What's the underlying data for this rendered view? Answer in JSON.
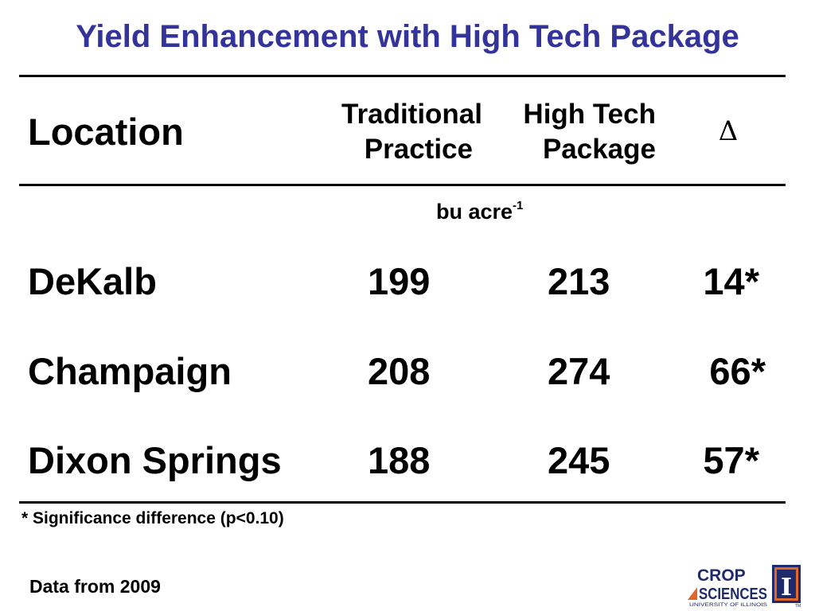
{
  "title": "Yield Enhancement with High Tech Package",
  "table": {
    "headers": {
      "location": "Location",
      "traditional_line1": "Traditional",
      "traditional_line2": "Practice",
      "hightech_line1": "High Tech",
      "hightech_line2": "Package",
      "delta": "Δ"
    },
    "unit": {
      "text": "bu acre",
      "superscript": "-1"
    },
    "rows": [
      {
        "location": "DeKalb",
        "traditional": "199",
        "hightech": "213",
        "delta": "14*"
      },
      {
        "location": "Champaign",
        "traditional": "208",
        "hightech": "274",
        "delta": "66*"
      },
      {
        "location": "Dixon Springs",
        "traditional": "188",
        "hightech": "245",
        "delta": "57*"
      }
    ]
  },
  "footnote": "* Significance difference (p<0.10)",
  "source": "Data from 2009",
  "logo": {
    "line1": "CROP",
    "line2": "SCIENCES",
    "line3": "UNIVERSITY OF ILLINOIS",
    "mark": "I",
    "tm": "TM"
  },
  "colors": {
    "title": "#333399",
    "logo_blue": "#1f2a6b",
    "logo_orange": "#e0662a"
  }
}
